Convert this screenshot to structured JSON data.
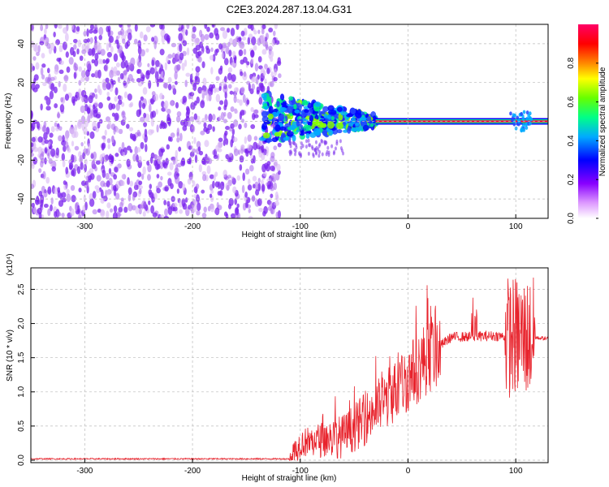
{
  "title": "C2E3.2024.287.13.04.G31",
  "chart_data": [
    {
      "type": "heatmap",
      "xlabel": "Height of straight line (km)",
      "ylabel": "Frequency (Hz)",
      "xlim": [
        -350,
        130
      ],
      "ylim": [
        -50,
        50
      ],
      "x_ticks": [
        -300,
        -200,
        -100,
        0,
        100
      ],
      "y_ticks": [
        -40,
        -20,
        0,
        20,
        40
      ],
      "colorbar": {
        "label": "Normalized spectral amplitude",
        "range": [
          0,
          1
        ],
        "ticks": [
          "0.0",
          "0.2",
          "0.4",
          "0.6",
          "0.8"
        ],
        "colors": [
          "#ffffff",
          "#8800ff",
          "#0000ff",
          "#00aaff",
          "#00ff66",
          "#aaff00",
          "#ffaa00",
          "#ff0000",
          "#ff0066"
        ]
      },
      "regions": [
        {
          "x_range": [
            -350,
            -125
          ],
          "freq_range": [
            -50,
            50
          ],
          "amplitude": 0.15,
          "description": "noise"
        },
        {
          "x_range": [
            -135,
            -30
          ],
          "freq_range": [
            -12,
            12
          ],
          "amplitude": 0.4
        },
        {
          "x_range": [
            -30,
            130
          ],
          "freq_center": 0,
          "amplitude": 0.9
        },
        {
          "x_range": [
            95,
            115
          ],
          "freq_range": [
            -5,
            5
          ],
          "amplitude": 0.4
        }
      ],
      "grid": true
    },
    {
      "type": "line",
      "xlabel": "Height of straight line (km)",
      "ylabel": "SNR (10 * v/v)",
      "y_multiplier": "(x10⁴)",
      "xlim": [
        -350,
        130
      ],
      "ylim": [
        0,
        2.85
      ],
      "x_ticks": [
        -300,
        -200,
        -100,
        0,
        100
      ],
      "y_ticks": [
        "0.0",
        "0.5",
        "1.0",
        "1.5",
        "2.0",
        "2.5"
      ],
      "line_color": "#e8232c",
      "series_profile": [
        {
          "x": -350,
          "y": 0.0
        },
        {
          "x": -110,
          "y": 0.0
        },
        {
          "x": -100,
          "y": 0.25
        },
        {
          "x": -60,
          "y": 0.35
        },
        {
          "x": -40,
          "y": 0.6
        },
        {
          "x": -20,
          "y": 0.9
        },
        {
          "x": 0,
          "y": 1.2
        },
        {
          "x": 20,
          "y": 1.55
        },
        {
          "x": 40,
          "y": 1.8
        },
        {
          "x": 80,
          "y": 1.82
        },
        {
          "x": 100,
          "y": 1.8
        },
        {
          "x": 110,
          "y": 1.8
        },
        {
          "x": 130,
          "y": 1.78
        }
      ],
      "grid": true
    }
  ]
}
